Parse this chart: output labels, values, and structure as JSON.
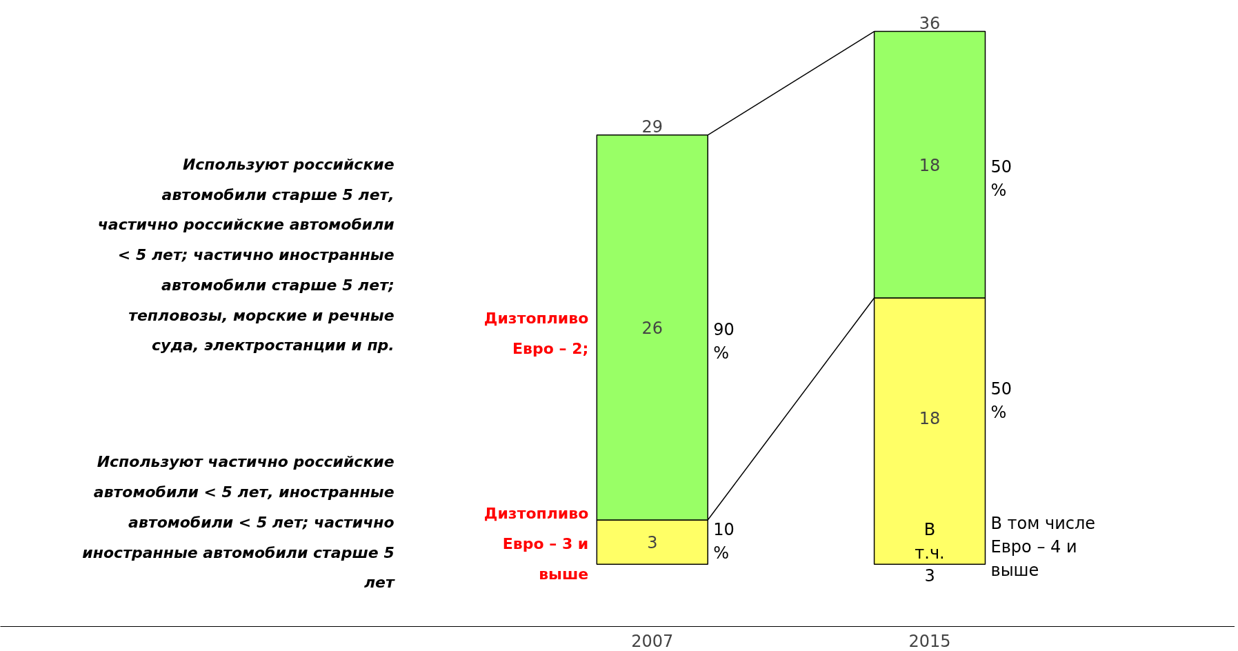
{
  "chart_data": {
    "type": "bar",
    "stacked": true,
    "categories": [
      "2007",
      "2015"
    ],
    "series": [
      {
        "color": "#ffff66",
        "values": [
          3,
          18
        ],
        "value_labels": [
          "3",
          "18"
        ]
      },
      {
        "color": "#99ff66",
        "values": [
          26,
          18
        ],
        "value_labels": [
          "26",
          "18"
        ]
      }
    ],
    "totals": [
      "29",
      "36"
    ],
    "annotations": [
      "Используют российские автомобили старше 5 лет, частично российские автомобили < 5 лет; частично иностранные автомобили старше 5 лет; тепловозы, морские и речные суда, электростанции и пр.",
      "Используют частично российские автомобили < 5 лет, иностранные автомобили < 5 лет; частично иностранные автомобили старше 5 лет",
      "Дизтопливо Евро – 2;",
      "Дизтопливо Евро – 3 и выше",
      "90 %",
      "10 %",
      "50 %",
      "50 %",
      "В т.ч. 3",
      "В том числе Евро – 4 и выше"
    ],
    "grid": false
  }
}
